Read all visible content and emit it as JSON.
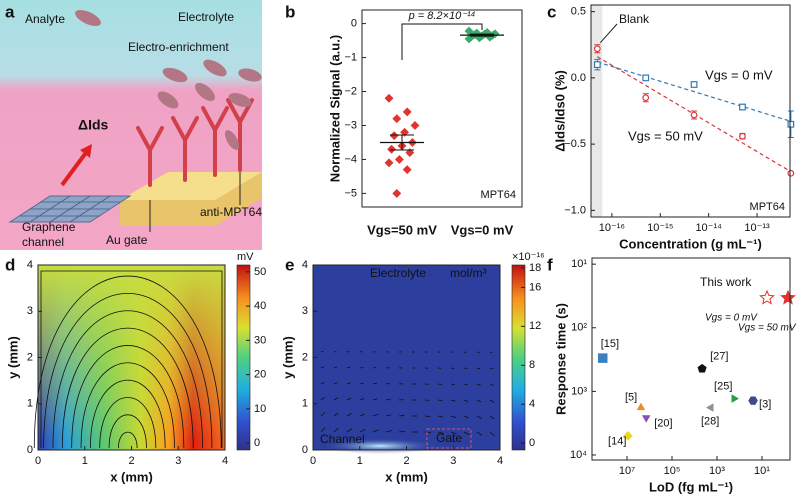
{
  "panel_labels": [
    "a",
    "b",
    "c",
    "d",
    "e",
    "f"
  ],
  "illustration": {
    "analyte": "Analyte",
    "electrolyte": "Electrolyte",
    "enrichment": "Electro-enrichment",
    "current": "ΔIds",
    "channel": [
      "Graphene",
      "channel"
    ],
    "gate": "Au gate",
    "antibody": "anti-MPT64"
  },
  "chart_data": [
    {
      "type": "strip",
      "ylabel": "Normalized Signal (a.u.)",
      "categories": [
        "Vgs=50 mV",
        "Vgs=0 mV"
      ],
      "series": [
        {
          "color": "#e2342f",
          "values": [
            -2.2,
            -2.6,
            -2.8,
            -3.0,
            -3.2,
            -3.3,
            -3.5,
            -3.6,
            -3.7,
            -3.8,
            -4.0,
            -4.1,
            -4.3,
            -5.0
          ],
          "mean": -3.5,
          "error": 0.22
        },
        {
          "color": "#3aaa6a",
          "values": [
            -0.22,
            -0.26,
            -0.28,
            -0.3,
            -0.31,
            -0.33,
            -0.35,
            -0.36,
            -0.38,
            -0.4,
            -0.42,
            -0.45
          ],
          "mean": -0.34,
          "error": 0.03
        }
      ],
      "ylim": [
        -5.4,
        0.4
      ],
      "yticks": [
        0,
        {
          "value": -1,
          "label": "−1"
        },
        {
          "value": -2,
          "label": "−2"
        },
        {
          "value": -3,
          "label": "−3"
        },
        {
          "value": -4,
          "label": "−4"
        },
        {
          "value": -5,
          "label": "−5"
        }
      ],
      "annotations": [
        "p = 8.2×10⁻¹⁴",
        "MPT64"
      ]
    },
    {
      "type": "scatter",
      "xlabel": "Concentration (g mL⁻¹)",
      "ylabel": "ΔIds/Ids0 (%)",
      "xscale": "log",
      "xlim": [
        3.7e-17,
        4.8e-13
      ],
      "xticks": [
        {
          "value": 1e-16,
          "label": "10⁻¹⁶"
        },
        {
          "value": 1e-15,
          "label": "10⁻¹⁵"
        },
        {
          "value": 1e-14,
          "label": "10⁻¹⁴"
        },
        {
          "value": 1e-13,
          "label": "10⁻¹³"
        }
      ],
      "ylim": [
        -1.05,
        0.55
      ],
      "yticks": [
        {
          "value": 0.5,
          "label": "0.5"
        },
        {
          "value": 0,
          "label": "0.0"
        },
        {
          "value": -0.5,
          "label": "−0.5"
        },
        {
          "value": -1,
          "label": "−1.0"
        }
      ],
      "series": [
        {
          "name": "Vgs = 0 mV",
          "color": "#2f7ab8",
          "marker": "square",
          "x": [
            5e-17,
            5e-16,
            5e-15,
            5e-14,
            5e-13
          ],
          "values": [
            0.1,
            0.0,
            -0.05,
            -0.22,
            -0.35
          ],
          "errors": [
            0.04,
            0.02,
            0.01,
            0.01,
            0.1
          ]
        },
        {
          "name": "Vgs = 50 mV",
          "color": "#d9353a",
          "marker": "circle",
          "x": [
            5e-17,
            5e-16,
            5e-15,
            5e-14,
            5e-13
          ],
          "values": [
            0.22,
            -0.15,
            -0.28,
            -0.44,
            -0.72
          ],
          "errors": [
            0.03,
            0.03,
            0.03,
            0.02,
            0.01
          ]
        }
      ],
      "annotations": [
        "Blank",
        "MPT64"
      ]
    },
    {
      "type": "heatmap",
      "xlabel": "x (mm)",
      "ylabel": "y (mm)",
      "xlim": [
        0,
        4
      ],
      "ylim": [
        0,
        4
      ],
      "xticks": [
        0,
        1,
        2,
        3,
        4
      ],
      "yticks": [
        0,
        1,
        2,
        3,
        4
      ],
      "colorbar": {
        "label": "mV",
        "lim": [
          -2,
          52
        ],
        "ticks": [
          0,
          10,
          20,
          30,
          40,
          50
        ]
      }
    },
    {
      "type": "heatmap",
      "xlabel": "x (mm)",
      "ylabel": "y (mm)",
      "xlim": [
        0,
        4
      ],
      "ylim": [
        0,
        4
      ],
      "xticks": [
        0,
        1,
        2,
        3,
        4
      ],
      "yticks": [
        0,
        1,
        2,
        3,
        4
      ],
      "colorbar": {
        "label": "×10⁻¹⁶",
        "lim": [
          -0.7,
          18.3
        ],
        "ticks": [
          0,
          4,
          8,
          12,
          16,
          18
        ]
      },
      "annotations": [
        "Electrolyte",
        "mol/m³",
        "Channel",
        "Gate"
      ]
    },
    {
      "type": "scatter",
      "xlabel": "LoD (fg mL⁻¹)",
      "ylabel": "Response time (s)",
      "xscale": "log",
      "yscale": "log",
      "xlim": [
        360000000.0,
        0.57
      ],
      "ylim": [
        8,
        12000
      ],
      "xticks": [
        {
          "value": 10000000.0,
          "label": "10⁷"
        },
        {
          "value": 100000.0,
          "label": "10⁵"
        },
        {
          "value": 1000.0,
          "label": "10³"
        },
        {
          "value": 10,
          "label": "10¹"
        }
      ],
      "yticks": [
        {
          "value": 10,
          "label": "10¹"
        },
        {
          "value": 100,
          "label": "10²"
        },
        {
          "value": 1000,
          "label": "10³"
        },
        {
          "value": 10000,
          "label": "10⁴"
        }
      ],
      "points": [
        {
          "name": "[15]",
          "x": 120000000.0,
          "y": 300,
          "color": "#3a7fc1",
          "marker": "square"
        },
        {
          "name": "[27]",
          "x": 4600,
          "y": 440,
          "color": "#111111",
          "marker": "pentagon"
        },
        {
          "name": "[5]",
          "x": 2400000.0,
          "y": 1800,
          "color": "#f08a24",
          "marker": "triangle-up"
        },
        {
          "name": "[20]",
          "x": 1400000.0,
          "y": 2600,
          "color": "#8a4fb0",
          "marker": "triangle-down"
        },
        {
          "name": "[14]",
          "x": 9000000.0,
          "y": 5000,
          "color": "#e8d820",
          "marker": "diamond"
        },
        {
          "name": "[25]",
          "x": 175,
          "y": 1300,
          "color": "#2a9a4a",
          "marker": "triangle-right"
        },
        {
          "name": "[3]",
          "x": 25,
          "y": 1400,
          "color": "#3a4a8a",
          "marker": "hexagon"
        },
        {
          "name": "[28]",
          "x": 1860,
          "y": 1800,
          "color": "#909090",
          "marker": "triangle-left"
        },
        {
          "name": "Vgs = 0 mV",
          "x": 6,
          "y": 34,
          "color": "#e2342f",
          "marker": "star-open"
        },
        {
          "name": "Vgs = 50 mV",
          "x": 0.7,
          "y": 34,
          "color": "#e2342f",
          "marker": "star"
        }
      ],
      "annotations": [
        "This work"
      ]
    }
  ]
}
